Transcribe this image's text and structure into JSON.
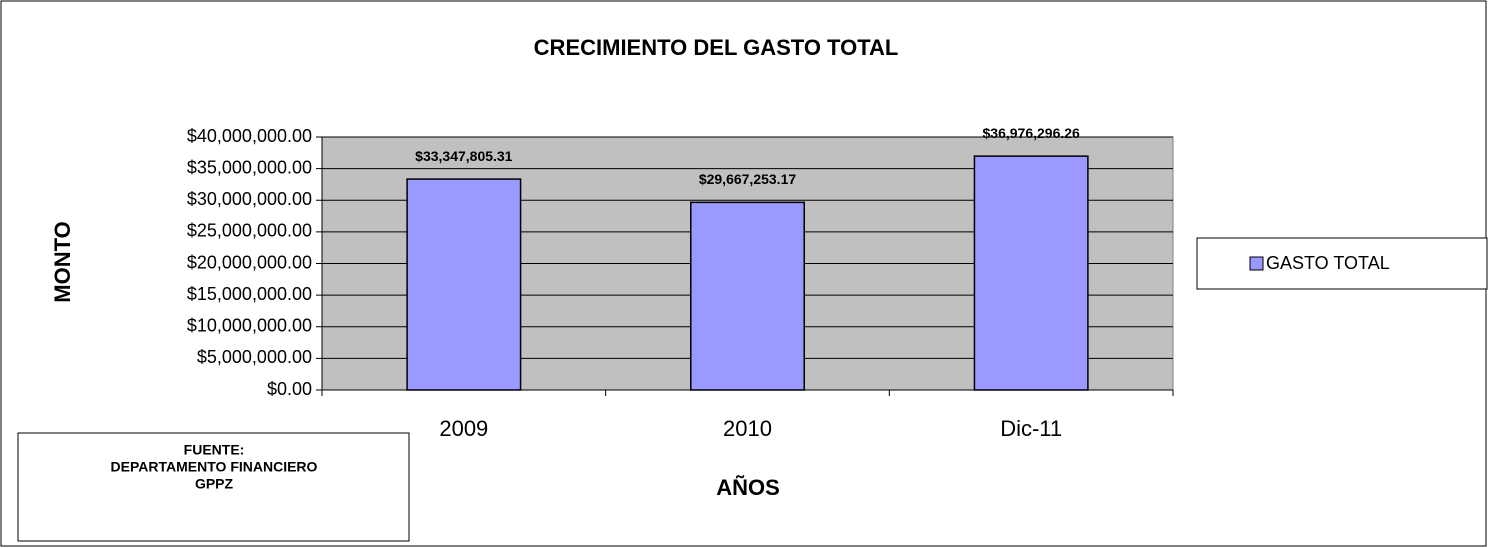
{
  "chart_data": {
    "type": "bar",
    "title": "CRECIMIENTO DEL GASTO TOTAL",
    "x_label": "AÑOS",
    "y_label": "MONTO",
    "categories": [
      "2009",
      "2010",
      "Dic-11"
    ],
    "series": [
      {
        "name": "GASTO TOTAL",
        "color": "#9999ff",
        "values": [
          33347805.31,
          29667253.17,
          36976296.26
        ],
        "value_labels": [
          "$33,347,805.31",
          "$29,667,253.17",
          "$36,976,296.26"
        ]
      }
    ],
    "ylim": [
      0,
      40000000
    ],
    "yticks": [
      {
        "value": 0,
        "label": "$0.00"
      },
      {
        "value": 5000000,
        "label": "$5,000,000.00"
      },
      {
        "value": 10000000,
        "label": "$10,000,000.00"
      },
      {
        "value": 15000000,
        "label": "$15,000,000.00"
      },
      {
        "value": 20000000,
        "label": "$20,000,000.00"
      },
      {
        "value": 25000000,
        "label": "$25,000,000.00"
      },
      {
        "value": 30000000,
        "label": "$30,000,000.00"
      },
      {
        "value": 35000000,
        "label": "$35,000,000.00"
      },
      {
        "value": 40000000,
        "label": "$40,000,000.00"
      }
    ],
    "grid": true,
    "plot_background": "#c0c0c0",
    "legend": "right",
    "annotation": [
      "FUENTE:",
      "DEPARTAMENTO FINANCIERO",
      "GPPZ"
    ]
  }
}
